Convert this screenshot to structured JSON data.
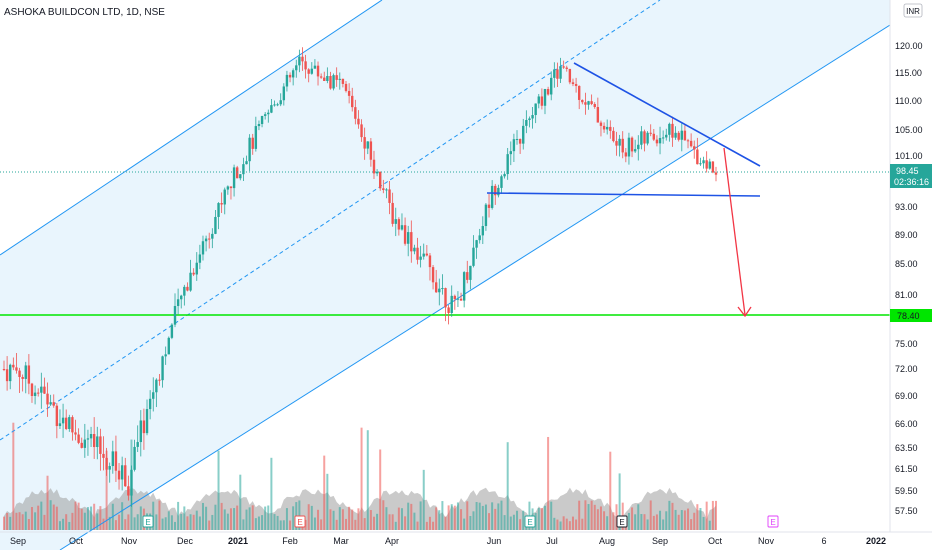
{
  "header": {
    "symbol_title": "ASHOKA BUILDCON LTD, 1D, NSE",
    "currency": "INR"
  },
  "colors": {
    "up": "#26a69a",
    "down": "#ef5350",
    "channel_line": "#2196f3",
    "channel_fill": "#e3f2fd",
    "pattern_line": "#1e53e5",
    "support_line": "#00e600",
    "target_arrow": "#f23645",
    "volume_area": "#9e9e9e",
    "last_price_bg": "#26a69a"
  },
  "price_badges": {
    "last_price": "98.45",
    "countdown": "02:36:16",
    "support_label": "78.40"
  },
  "chart_data": {
    "type": "candlestick",
    "title": "ASHOKA BUILDCON LTD, 1D, NSE",
    "y_ticks": [
      "120.00",
      "115.00",
      "110.00",
      "105.00",
      "101.00",
      "97.00",
      "93.00",
      "89.00",
      "85.00",
      "81.00",
      "78.40",
      "75.00",
      "72.00",
      "69.00",
      "66.00",
      "63.50",
      "61.50",
      "59.50",
      "57.50"
    ],
    "x_ticks": [
      "Sep",
      "Oct",
      "Nov",
      "Dec",
      "2021",
      "Feb",
      "Mar",
      "Apr",
      "Jun",
      "Jul",
      "Aug",
      "Sep",
      "Oct",
      "Nov",
      "6",
      "2022"
    ],
    "last_price": 98.45,
    "support_level": 78.4,
    "triangle": {
      "upper_trendline": [
        [
          "Jul",
          117
        ],
        [
          "Oct",
          100
        ]
      ],
      "lower_support": [
        [
          "Jun",
          95.5
        ],
        [
          "Oct",
          95.5
        ]
      ]
    },
    "projected_target": 78.4,
    "trend": [
      [
        "Sep",
        72
      ],
      [
        "Oct",
        65
      ],
      [
        "Nov",
        60.5
      ],
      [
        "Dec",
        82
      ],
      [
        "2021",
        99
      ],
      [
        "Feb",
        117
      ],
      [
        "Mar",
        112
      ],
      [
        "Apr",
        92
      ],
      [
        "Apr",
        79
      ],
      [
        "Jun",
        96
      ],
      [
        "Jul",
        116
      ],
      [
        "Aug",
        102
      ],
      [
        "Sep",
        105
      ],
      [
        "Oct",
        98.45
      ]
    ],
    "event_markers": [
      {
        "date": "Dec",
        "label": "E"
      },
      {
        "date": "Feb",
        "label": "E"
      },
      {
        "date": "Jun",
        "label": "E"
      },
      {
        "date": "Aug",
        "label": "E"
      },
      {
        "date": "Nov",
        "label": "E"
      }
    ]
  }
}
